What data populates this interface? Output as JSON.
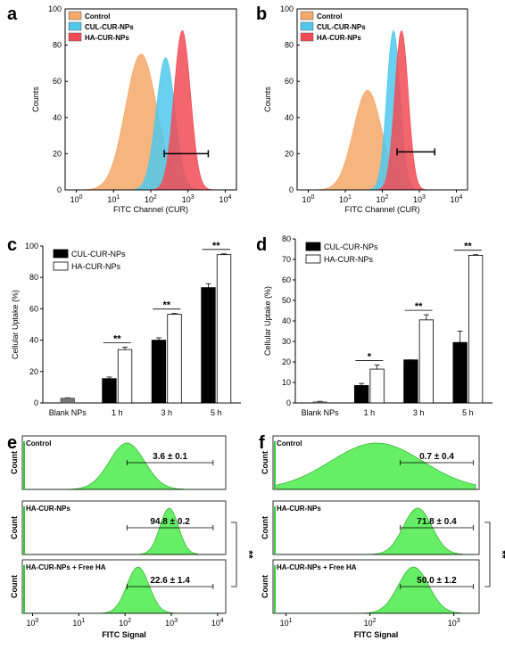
{
  "figure": {
    "panel_letters": [
      "a",
      "b",
      "c",
      "d",
      "e",
      "f"
    ],
    "significance": {
      "double": "**",
      "single": "*"
    }
  },
  "chart_data": [
    {
      "panel": "a",
      "type": "area",
      "x_scale": "log",
      "xlim": [
        0.5,
        20000
      ],
      "ylim": [
        0,
        100
      ],
      "xlabel": "FITC Channel (CUR)",
      "ylabel": "Counts",
      "x_tick_exponents": [
        "0",
        "1",
        "2",
        "3",
        "4"
      ],
      "y_ticks": [
        "0",
        "20",
        "40",
        "60",
        "80",
        "100"
      ],
      "legend": [
        {
          "name": "Control",
          "color": "#F5A868"
        },
        {
          "name": "CUL-CUR-NPs",
          "color": "#4FC8EC"
        },
        {
          "name": "HA-CUR-NPs",
          "color": "#F24B55"
        }
      ],
      "series": [
        {
          "name": "Control",
          "peak_x": 55,
          "peak_y": 75,
          "width": 0.42
        },
        {
          "name": "CUL-CUR-NPs",
          "peak_x": 250,
          "peak_y": 73,
          "width": 0.25
        },
        {
          "name": "HA-CUR-NPs",
          "peak_x": 700,
          "peak_y": 88,
          "width": 0.22
        }
      ],
      "gate": {
        "x1": 230,
        "x2": 3500,
        "y": 20
      }
    },
    {
      "panel": "b",
      "type": "area",
      "x_scale": "log",
      "xlim": [
        0.5,
        20000
      ],
      "ylim": [
        0,
        100
      ],
      "xlabel": "FITC Channel (CUR)",
      "ylabel": "Counts",
      "x_tick_exponents": [
        "0",
        "1",
        "2",
        "3",
        "4"
      ],
      "y_ticks": [
        "0",
        "20",
        "40",
        "60",
        "80",
        "100"
      ],
      "legend": [
        {
          "name": "Control",
          "color": "#F5A868"
        },
        {
          "name": "CUL-CUR-NPs",
          "color": "#4FC8EC"
        },
        {
          "name": "HA-CUR-NPs",
          "color": "#F24B55"
        }
      ],
      "series": [
        {
          "name": "Control",
          "peak_x": 40,
          "peak_y": 55,
          "width": 0.38
        },
        {
          "name": "CUL-CUR-NPs",
          "peak_x": 200,
          "peak_y": 88,
          "width": 0.18
        },
        {
          "name": "HA-CUR-NPs",
          "peak_x": 330,
          "peak_y": 88,
          "width": 0.18
        }
      ],
      "gate": {
        "x1": 250,
        "x2": 2600,
        "y": 21
      }
    },
    {
      "panel": "c",
      "type": "bar",
      "ylabel": "Cellular Uptake (%)",
      "ylim": [
        0,
        100
      ],
      "y_ticks": [
        "0",
        "20",
        "40",
        "60",
        "80",
        "100"
      ],
      "categories": [
        "Blank NPs",
        "1 h",
        "3 h",
        "5 h"
      ],
      "series": [
        {
          "name": "CUL-CUR-NPs",
          "values": [
            null,
            15.5,
            40,
            73.5
          ],
          "errors": [
            null,
            1,
            1.5,
            2.5
          ],
          "color": "#000000"
        },
        {
          "name": "HA-CUR-NPs",
          "values": [
            null,
            34,
            56.5,
            94.5
          ],
          "errors": [
            null,
            1.5,
            0.5,
            0.5
          ],
          "color": "#ffffff"
        }
      ],
      "blank": {
        "value": 3,
        "error": 0.3,
        "color": "#777777"
      },
      "significance": [
        "",
        "**",
        "**",
        "**"
      ]
    },
    {
      "panel": "d",
      "type": "bar",
      "ylabel": "Cellular Uptake (%)",
      "ylim": [
        0,
        80
      ],
      "y_ticks": [
        "0",
        "10",
        "20",
        "30",
        "40",
        "50",
        "60",
        "70",
        "80"
      ],
      "categories": [
        "Blank NPs",
        "1 h",
        "3 h",
        "5 h"
      ],
      "series": [
        {
          "name": "CUL-CUR-NPs",
          "values": [
            null,
            8.5,
            21,
            29.5
          ],
          "errors": [
            null,
            1,
            0,
            5.5
          ],
          "color": "#000000"
        },
        {
          "name": "HA-CUR-NPs",
          "values": [
            null,
            16.5,
            40.5,
            72
          ],
          "errors": [
            null,
            2,
            2.5,
            0.3
          ],
          "color": "#ffffff"
        }
      ],
      "blank": {
        "value": 0.5,
        "error": 0.3,
        "color": "#777777"
      },
      "significance": [
        "",
        "*",
        "**",
        "**"
      ]
    },
    {
      "panel": "e",
      "type": "area",
      "x_scale": "log",
      "xlim": [
        0.6,
        15000
      ],
      "xlabel": "FITC Signal",
      "ylabel": "Count",
      "x_tick_exponents": [
        "0",
        "1",
        "2",
        "3",
        "4"
      ],
      "fill": "#66EE66",
      "subpanels": [
        {
          "label": "Control",
          "value": "3.6 ± 0.1",
          "peak_x": 110,
          "width": 0.38,
          "gate": [
            110,
            8000
          ]
        },
        {
          "label": "HA-CUR-NPs",
          "value": "94.8 ± 0.2",
          "peak_x": 900,
          "width": 0.2,
          "gate": [
            110,
            8000
          ]
        },
        {
          "label": "HA-CUR-NPs  + Free HA",
          "value": "22.6 ± 1.4",
          "peak_x": 190,
          "width": 0.24,
          "gate": [
            110,
            8000
          ]
        }
      ],
      "bracket": "**"
    },
    {
      "panel": "f",
      "type": "area",
      "x_scale": "log",
      "xlim": [
        7,
        2000
      ],
      "xlabel": "FITC Signal",
      "ylabel": "Count",
      "x_tick_exponents": [
        "1",
        "2",
        "3"
      ],
      "fill": "#66EE66",
      "subpanels": [
        {
          "label": "Control",
          "value": "0.7 ± 0.4",
          "peak_x": 120,
          "width": 0.55,
          "gate": [
            230,
            1700
          ]
        },
        {
          "label": "HA-CUR-NPs",
          "value": "71.8 ± 0.4",
          "peak_x": 370,
          "width": 0.17,
          "gate": [
            230,
            1700
          ]
        },
        {
          "label": "HA-CUR-NPs  + Free HA",
          "value": "50.0 ± 1.2",
          "peak_x": 330,
          "width": 0.18,
          "gate": [
            230,
            1700
          ]
        }
      ],
      "bracket": "**"
    }
  ]
}
